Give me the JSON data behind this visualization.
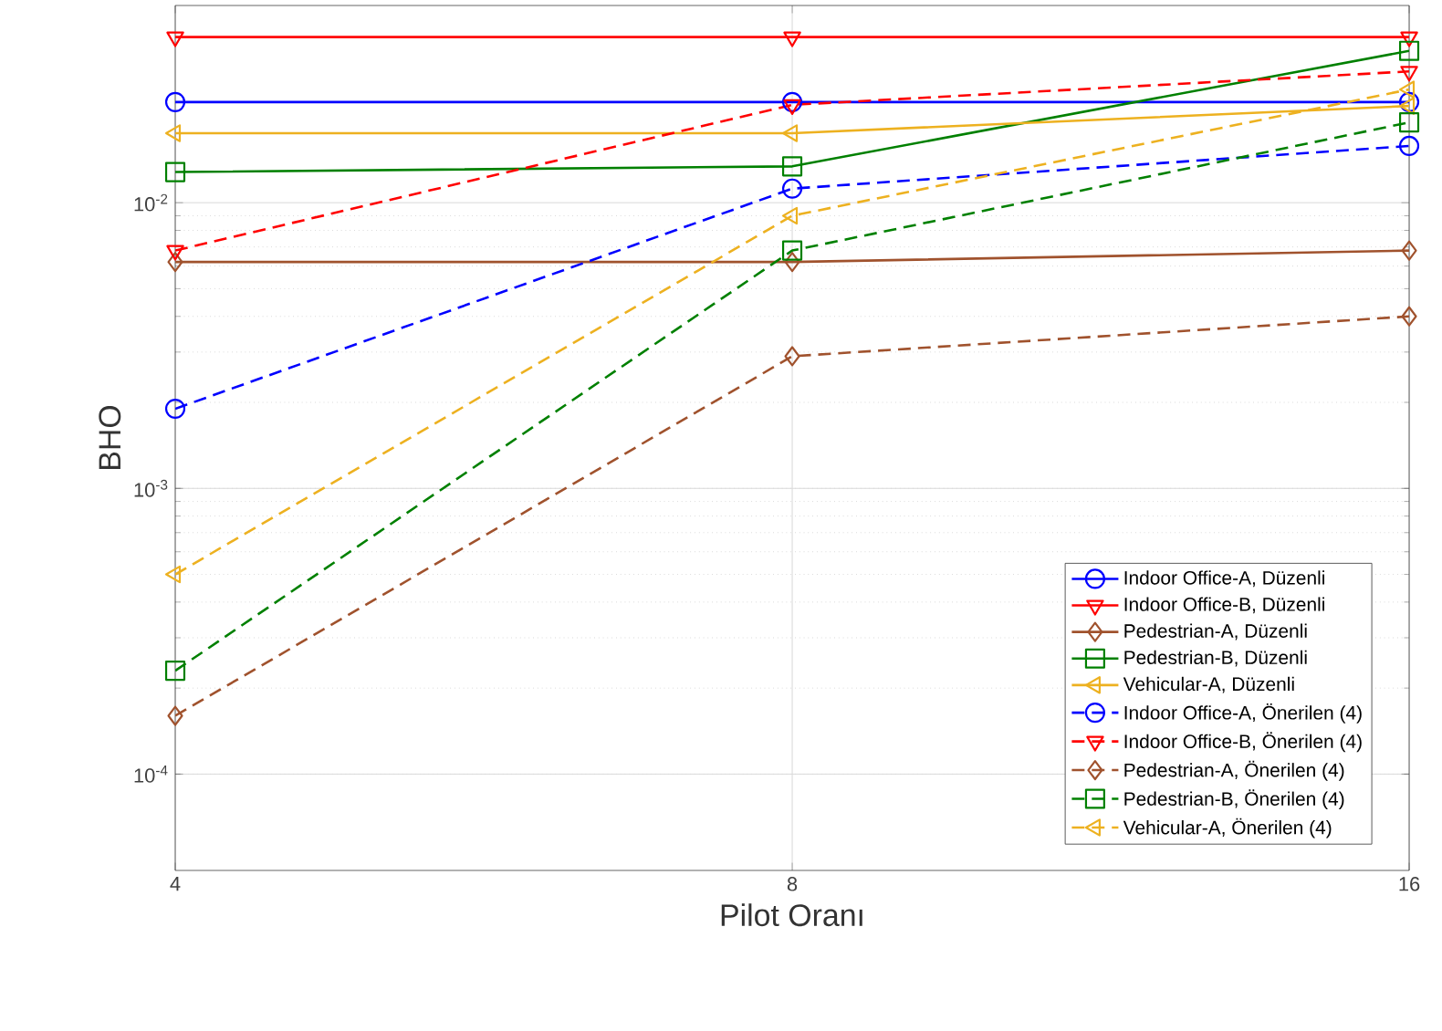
{
  "chart_data": {
    "type": "line",
    "xlabel": "Pilot Oranı",
    "ylabel": "BHO",
    "log": "xy",
    "grid": true,
    "legend": "bottom right",
    "x": [
      4,
      8,
      16
    ],
    "xlim": [
      4,
      16
    ],
    "xticks": [
      4,
      8,
      16
    ],
    "ylim": [
      4.6e-05,
      0.049
    ],
    "yticks": [
      {
        "value": 0.0001,
        "label": "10$^{-4}$"
      },
      {
        "value": 0.001,
        "label": "10$^{-3}$"
      },
      {
        "value": 0.01,
        "label": "10$^{-2}$"
      }
    ],
    "series": [
      {
        "name": "Indoor Office-A, Düzenli",
        "color": "#0000ff",
        "marker": "circle",
        "line_style": "solid",
        "values": [
          0.0225,
          0.0225,
          0.0225
        ]
      },
      {
        "name": "Indoor Office-B, Düzenli",
        "color": "#ff0000",
        "marker": "triangle-down",
        "line_style": "solid",
        "values": [
          0.038,
          0.038,
          0.038
        ]
      },
      {
        "name": "Pedestrian-A, Düzenli",
        "color": "#a0522d",
        "marker": "diamond",
        "line_style": "solid",
        "values": [
          0.0062,
          0.0062,
          0.0068
        ]
      },
      {
        "name": "Pedestrian-B, Düzenli",
        "color": "#008000",
        "marker": "square",
        "line_style": "solid",
        "values": [
          0.0128,
          0.0134,
          0.034
        ]
      },
      {
        "name": "Vehicular-A, Düzenli",
        "color": "#edb120",
        "marker": "triangle-left",
        "line_style": "solid",
        "values": [
          0.0175,
          0.0175,
          0.0218
        ]
      },
      {
        "name": "Indoor Office-A, Önerilen (4)",
        "color": "#0000ff",
        "marker": "circle",
        "line_style": "dashed",
        "values": [
          0.0019,
          0.0112,
          0.0158
        ]
      },
      {
        "name": "Indoor Office-B, Önerilen (4)",
        "color": "#ff0000",
        "marker": "triangle-down",
        "line_style": "dashed",
        "values": [
          0.0068,
          0.022,
          0.0288
        ]
      },
      {
        "name": "Pedestrian-A, Önerilen (4)",
        "color": "#a0522d",
        "marker": "diamond",
        "line_style": "dashed",
        "values": [
          0.00016,
          0.0029,
          0.004
        ]
      },
      {
        "name": "Pedestrian-B, Önerilen (4)",
        "color": "#008000",
        "marker": "square",
        "line_style": "dashed",
        "values": [
          0.00023,
          0.0068,
          0.0191
        ]
      },
      {
        "name": "Vehicular-A, Önerilen (4)",
        "color": "#edb120",
        "marker": "triangle-left",
        "line_style": "dashed",
        "values": [
          0.0005,
          0.009,
          0.0249
        ]
      }
    ]
  }
}
